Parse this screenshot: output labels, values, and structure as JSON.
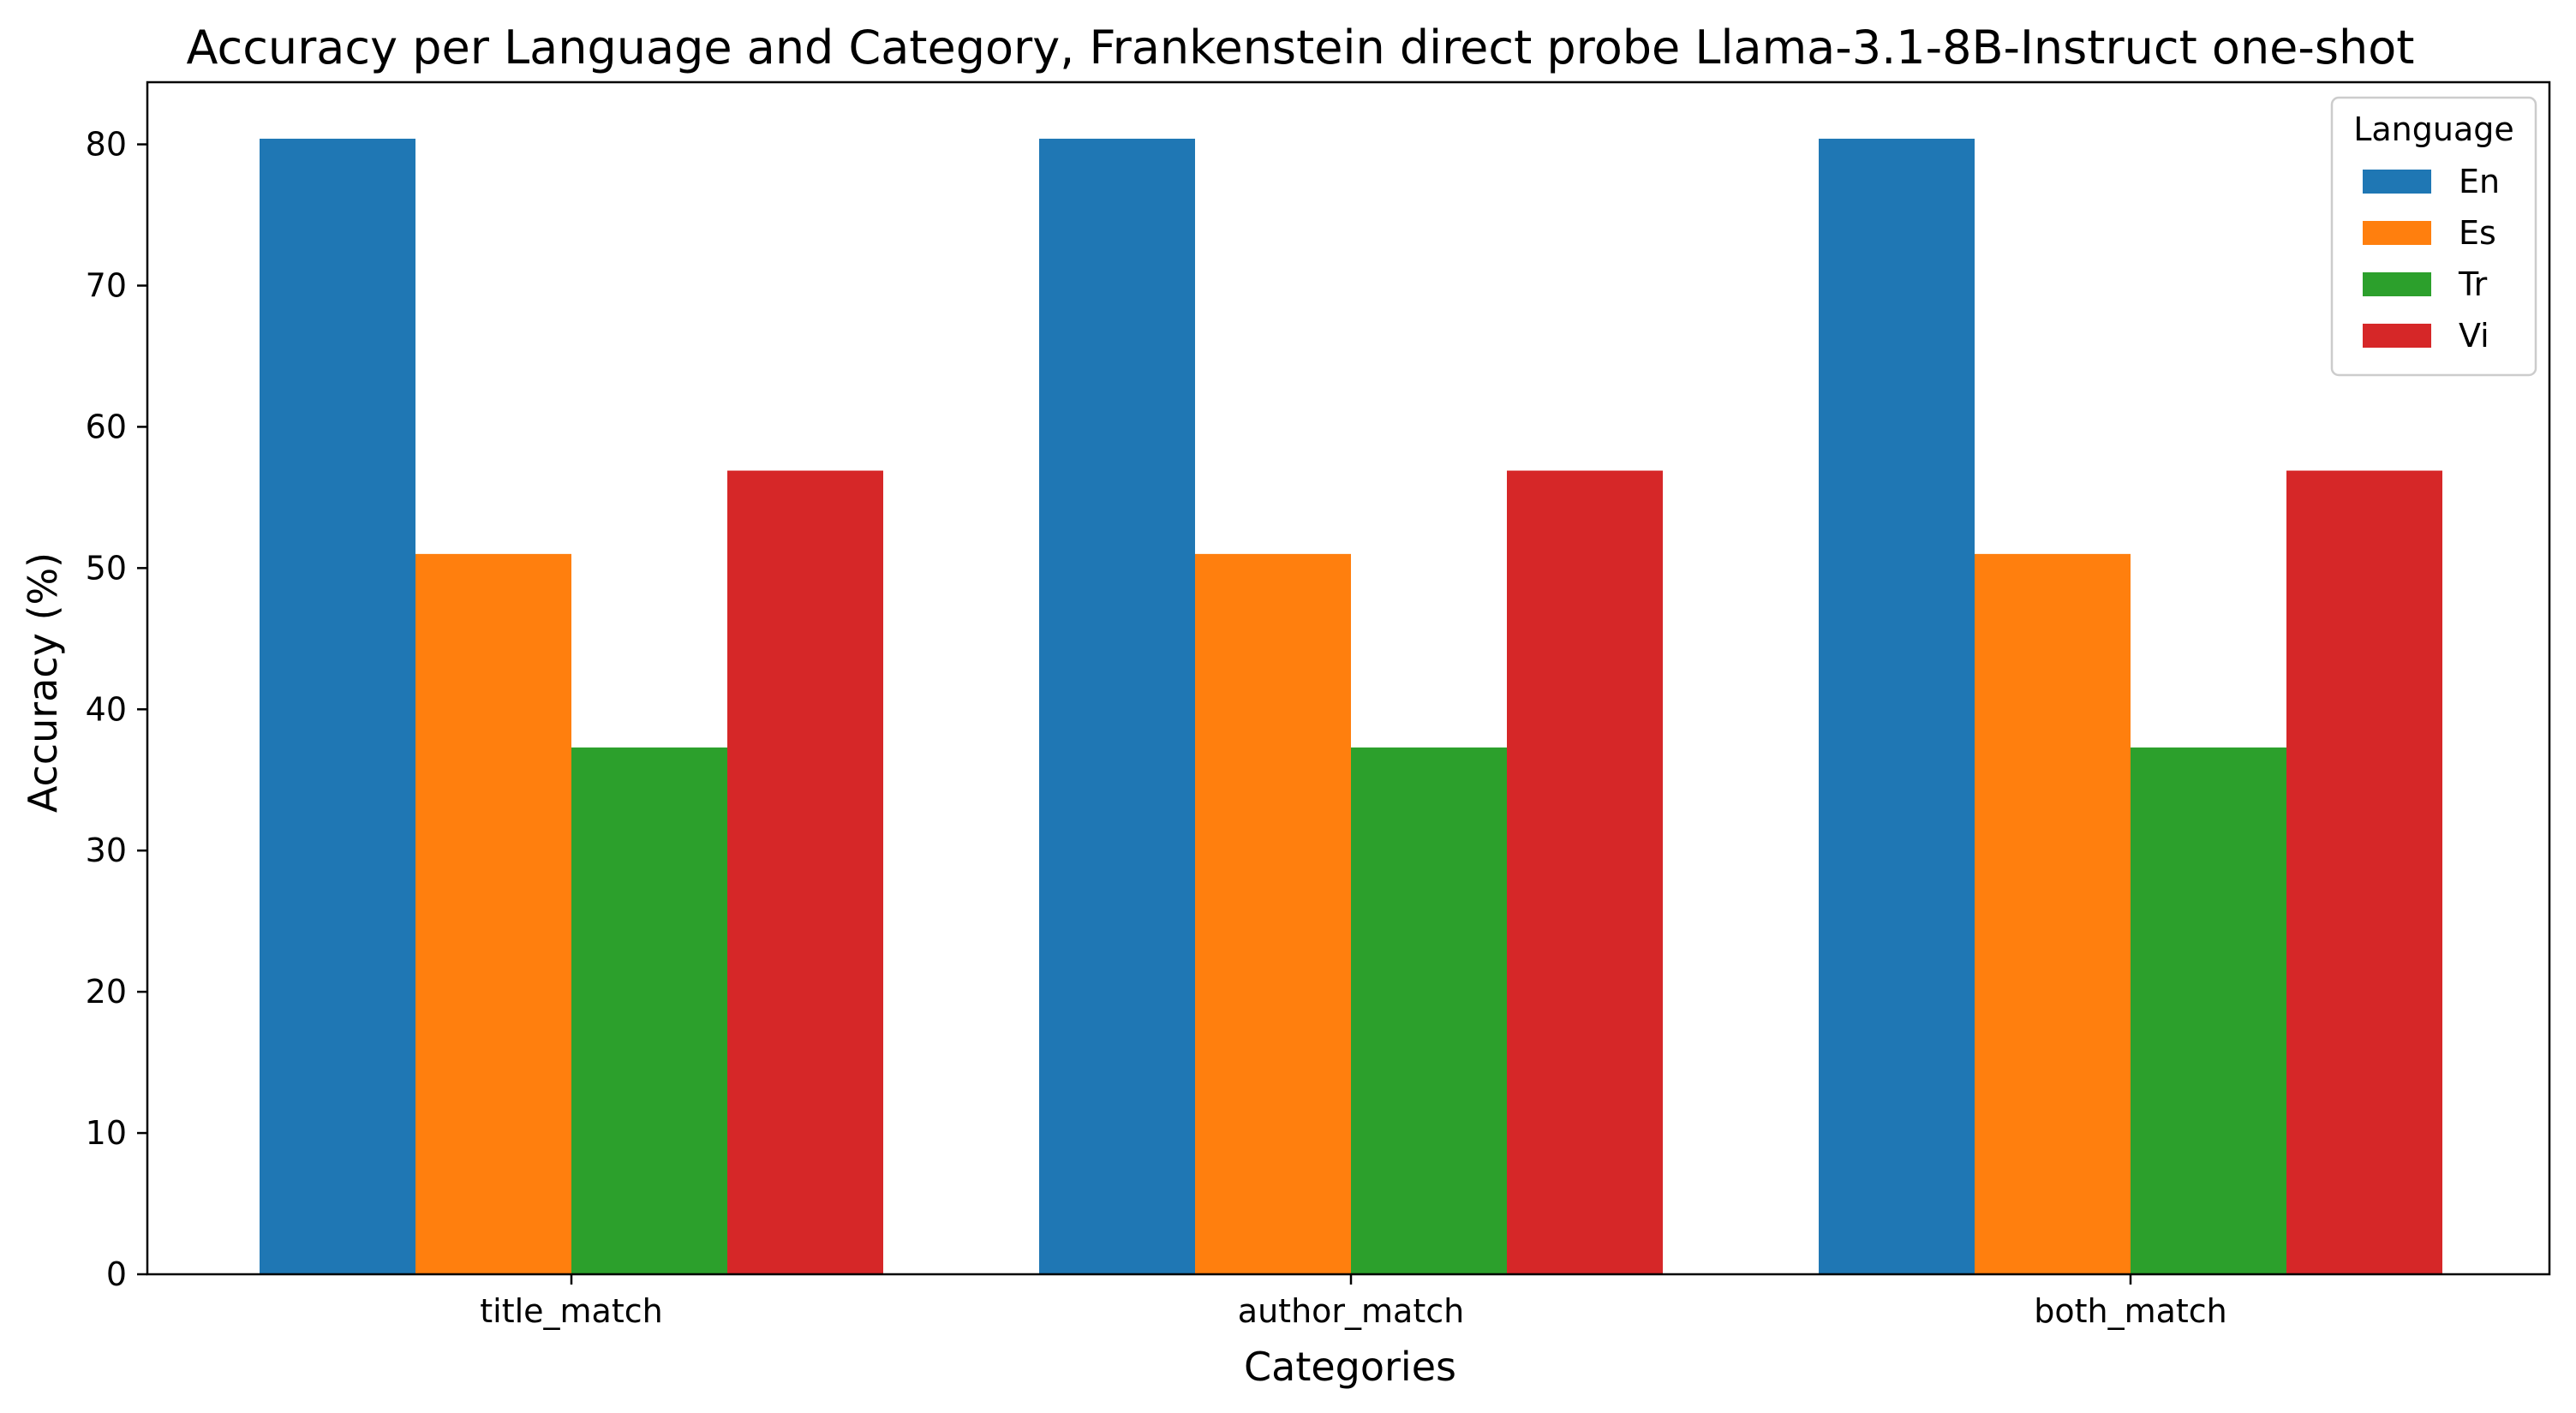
{
  "chart_data": {
    "type": "bar",
    "title": "Accuracy per Language and Category, Frankenstein direct probe Llama-3.1-8B-Instruct one-shot",
    "xlabel": "Categories",
    "ylabel": "Accuracy (%)",
    "categories": [
      "title_match",
      "author_match",
      "both_match"
    ],
    "series": [
      {
        "name": "En",
        "color": "#1f77b4",
        "values": [
          80.4,
          80.4,
          80.4
        ]
      },
      {
        "name": "Es",
        "color": "#ff7f0e",
        "values": [
          51.0,
          51.0,
          51.0
        ]
      },
      {
        "name": "Tr",
        "color": "#2ca02c",
        "values": [
          37.3,
          37.3,
          37.3
        ]
      },
      {
        "name": "Vi",
        "color": "#d62728",
        "values": [
          56.9,
          56.9,
          56.9
        ]
      }
    ],
    "ylim": [
      0,
      84.4
    ],
    "yticks": [
      0,
      10,
      20,
      30,
      40,
      50,
      60,
      70,
      80
    ],
    "legend": {
      "title": "Language",
      "placement": "top-right"
    },
    "grid": false
  }
}
